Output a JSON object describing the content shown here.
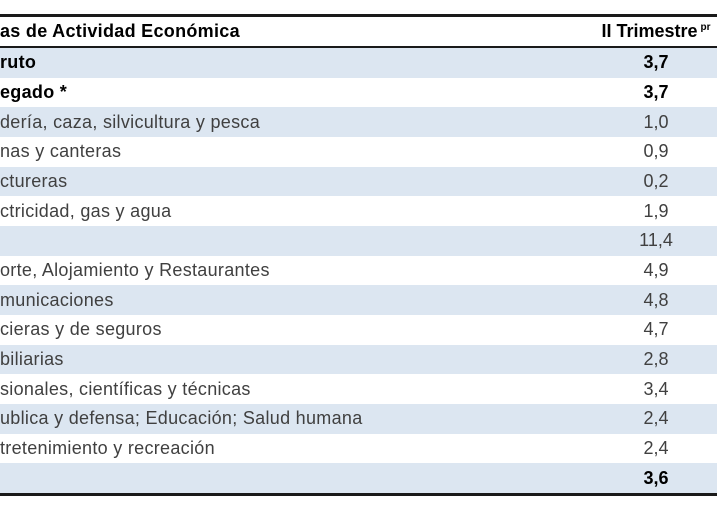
{
  "table": {
    "header": {
      "label_col": "as de Actividad Económica",
      "value_col": "II Trimestre",
      "value_col_sup": "pr"
    },
    "rows": [
      {
        "label": "ruto",
        "value": "3,7",
        "bold": true
      },
      {
        "label": "egado *",
        "value": "3,7",
        "bold": true
      },
      {
        "label": "dería, caza, silvicultura y pesca",
        "value": "1,0",
        "bold": false
      },
      {
        "label": "nas y canteras",
        "value": "0,9",
        "bold": false
      },
      {
        "label": "ctureras",
        "value": "0,2",
        "bold": false
      },
      {
        "label": "ctricidad, gas y agua",
        "value": "1,9",
        "bold": false
      },
      {
        "label": "",
        "value": "11,4",
        "bold": false
      },
      {
        "label": "orte, Alojamiento y Restaurantes",
        "value": "4,9",
        "bold": false
      },
      {
        "label": "municaciones",
        "value": "4,8",
        "bold": false
      },
      {
        "label": "cieras y de seguros",
        "value": "4,7",
        "bold": false
      },
      {
        "label": "biliarias",
        "value": "2,8",
        "bold": false
      },
      {
        "label": "sionales, científicas y técnicas",
        "value": "3,4",
        "bold": false
      },
      {
        "label": "ublica y defensa; Educación; Salud humana",
        "value": "2,4",
        "bold": false
      },
      {
        "label": "tretenimiento y recreación",
        "value": "2,4",
        "bold": false
      },
      {
        "label": "",
        "value": "3,6",
        "bold": true
      }
    ],
    "colors": {
      "row_alt": "#dce6f1",
      "border": "#1a1a1a",
      "text_regular": "#404040",
      "text_bold": "#000000"
    }
  }
}
